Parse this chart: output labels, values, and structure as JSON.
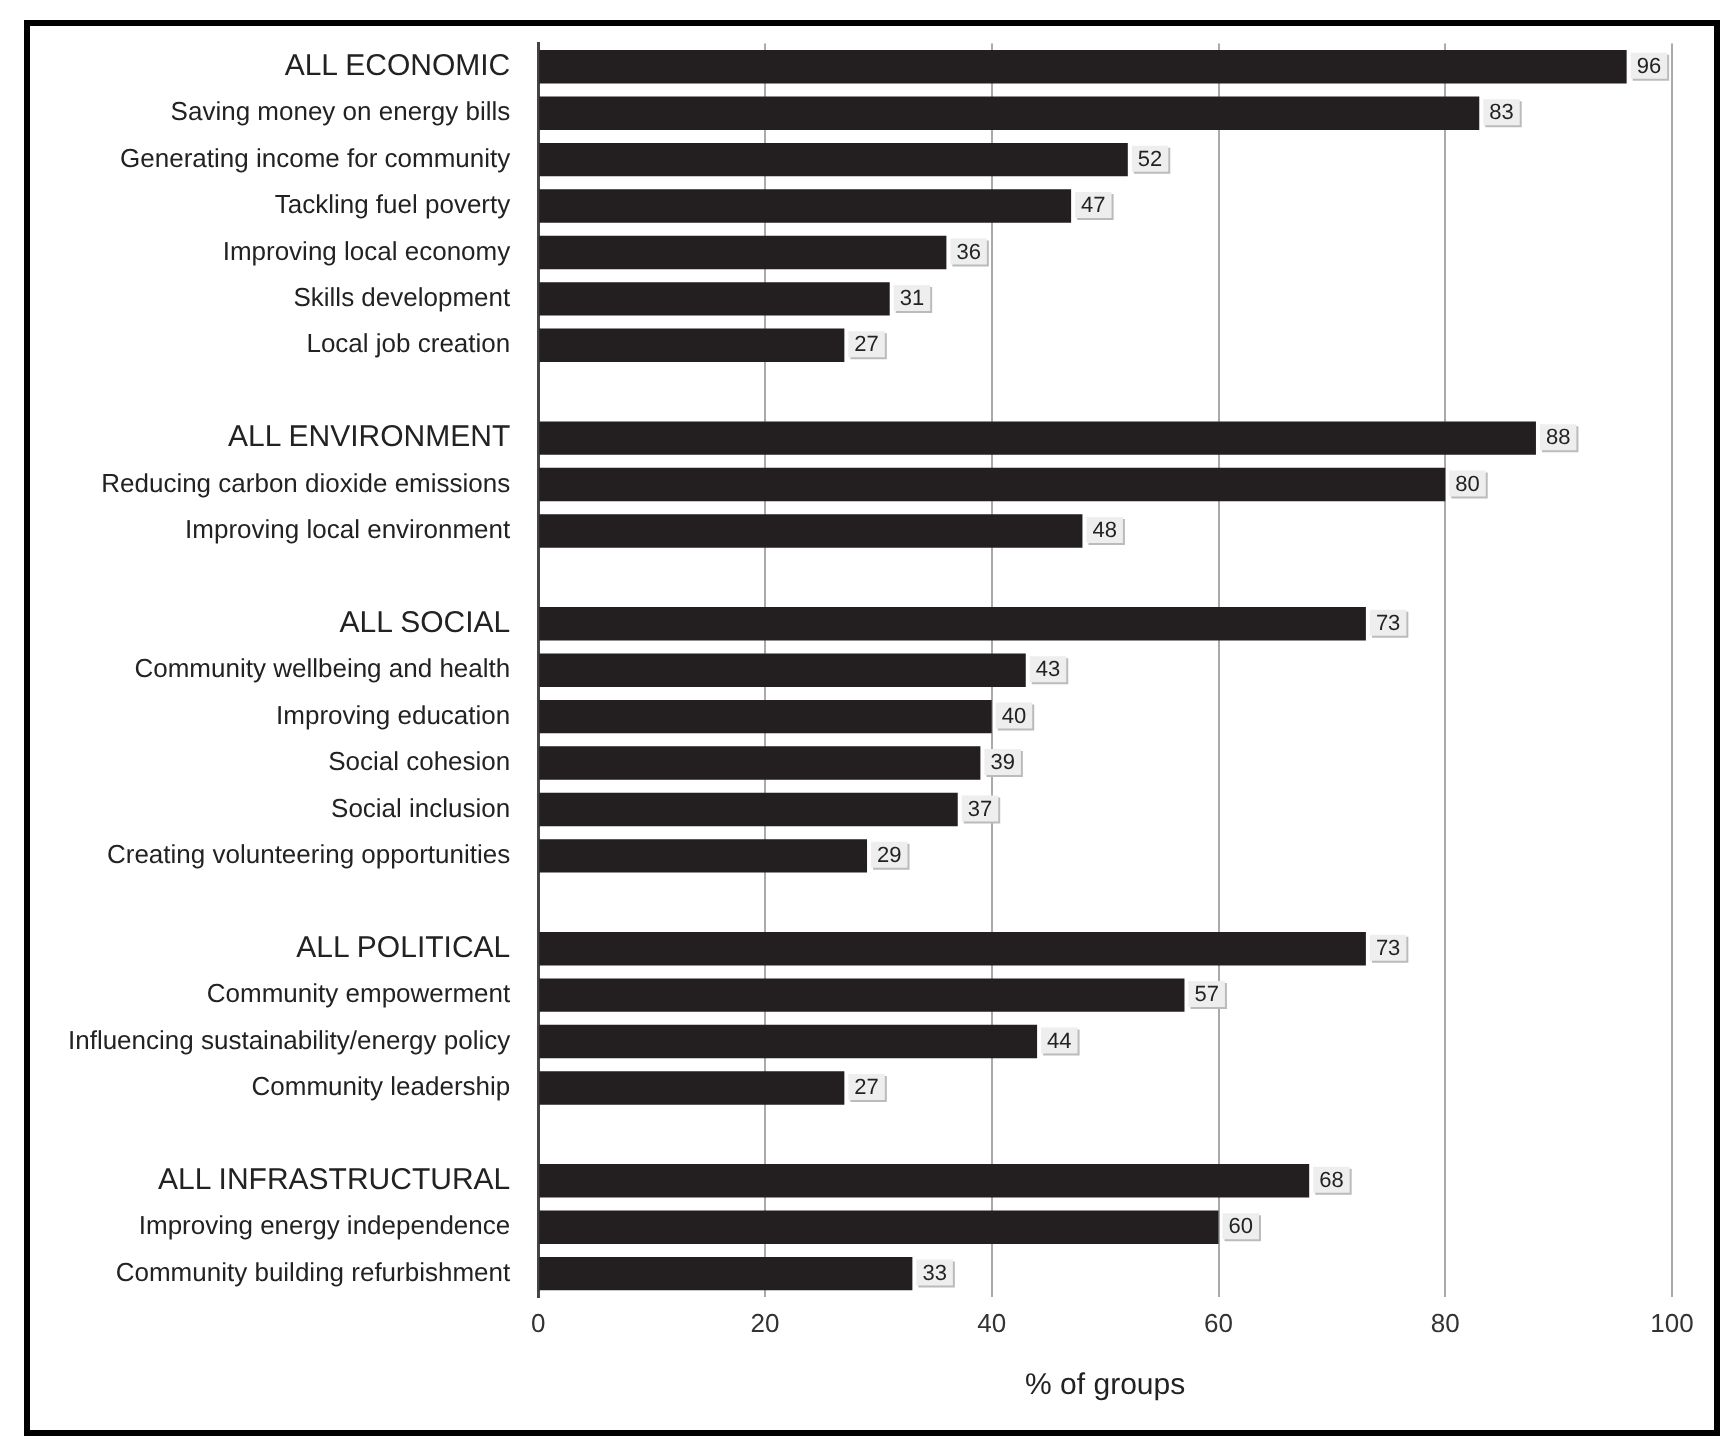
{
  "chart_data": {
    "type": "bar",
    "orientation": "horizontal",
    "xlabel": "% of groups",
    "categories": [
      "ALL ECONOMIC",
      "Saving money on energy bills",
      "Generating income for community",
      "Tackling fuel poverty",
      "Improving local economy",
      "Skills development",
      "Local job creation",
      null,
      "ALL ENVIRONMENT",
      "Reducing carbon dioxide emissions",
      "Improving local environment",
      null,
      "ALL SOCIAL",
      "Community wellbeing and health",
      "Improving education",
      "Social cohesion",
      "Social inclusion",
      "Creating volunteering opportunities",
      null,
      "ALL POLITICAL",
      "Community empowerment",
      "Influencing sustainability/energy policy",
      "Community leadership",
      null,
      "ALL INFRASTRUCTURAL",
      "Improving energy independence",
      "Community building refurbishment"
    ],
    "values": [
      96,
      83,
      52,
      47,
      36,
      31,
      27,
      null,
      88,
      80,
      48,
      null,
      73,
      43,
      40,
      39,
      37,
      29,
      null,
      73,
      57,
      44,
      27,
      null,
      68,
      60,
      33
    ],
    "color": "#231f20",
    "xlim": [
      0,
      100
    ],
    "xticks": [
      0,
      20,
      40,
      60,
      80,
      100
    ],
    "grid": "x",
    "data_labels": true,
    "legend": false
  }
}
